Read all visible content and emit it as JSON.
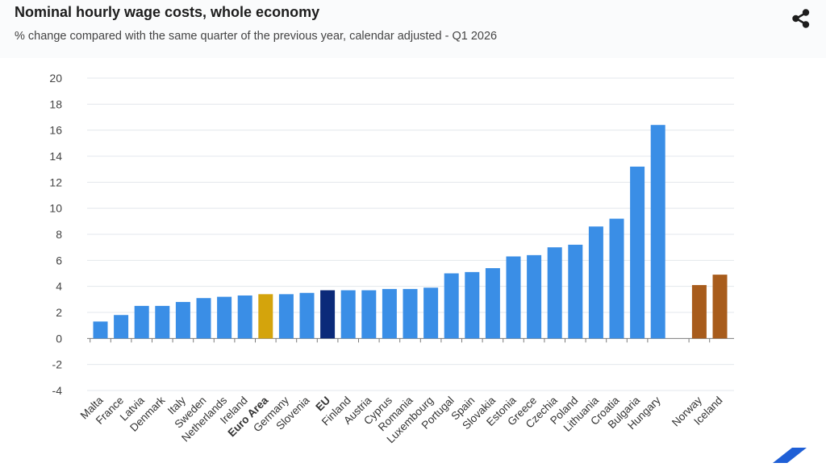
{
  "header": {
    "title": "Nominal hourly wage costs, whole economy",
    "subtitle": "% change compared with the same quarter of the previous year, calendar adjusted - Q1 2026",
    "share_icon": "share-icon"
  },
  "colors": {
    "default": "#3a8ee6",
    "euro_area": "#d4a40c",
    "eu": "#0b2a7a",
    "non_eu": "#a85c1c",
    "grid": "#e3e7ec"
  },
  "chart_data": {
    "type": "bar",
    "title": "Nominal hourly wage costs, whole economy",
    "subtitle": "% change compared with the same quarter of the previous year, calendar adjusted - Q1 2026",
    "xlabel": "",
    "ylabel": "",
    "ylim": [
      -4,
      20
    ],
    "yticks": [
      -4,
      -2,
      0,
      2,
      4,
      6,
      8,
      10,
      12,
      14,
      16,
      18,
      20
    ],
    "grid": true,
    "legend": "none",
    "categories": [
      "Malta",
      "France",
      "Latvia",
      "Denmark",
      "Italy",
      "Sweden",
      "Netherlands",
      "Ireland",
      "Euro Area",
      "Germany",
      "Slovenia",
      "EU",
      "Finland",
      "Austria",
      "Cyprus",
      "Romania",
      "Luxembourg",
      "Portugal",
      "Spain",
      "Slovakia",
      "Estonia",
      "Greece",
      "Czechia",
      "Poland",
      "Lithuania",
      "Croatia",
      "Bulgaria",
      "Hungary",
      "Norway",
      "Iceland"
    ],
    "values": [
      1.3,
      1.8,
      2.5,
      2.5,
      2.8,
      3.1,
      3.2,
      3.3,
      3.4,
      3.4,
      3.5,
      3.7,
      3.7,
      3.7,
      3.8,
      3.8,
      3.9,
      5.0,
      5.1,
      5.4,
      6.3,
      6.4,
      7.0,
      7.2,
      8.6,
      9.2,
      13.2,
      16.4,
      4.1,
      4.9
    ],
    "groups": [
      "eu",
      "eu",
      "eu",
      "eu",
      "eu",
      "eu",
      "eu",
      "eu",
      "aggregate",
      "eu",
      "eu",
      "aggregate",
      "eu",
      "eu",
      "eu",
      "eu",
      "eu",
      "eu",
      "eu",
      "eu",
      "eu",
      "eu",
      "eu",
      "eu",
      "eu",
      "eu",
      "eu",
      "eu",
      "non_eu",
      "non_eu"
    ],
    "bold_categories": [
      "Euro Area",
      "EU"
    ]
  }
}
